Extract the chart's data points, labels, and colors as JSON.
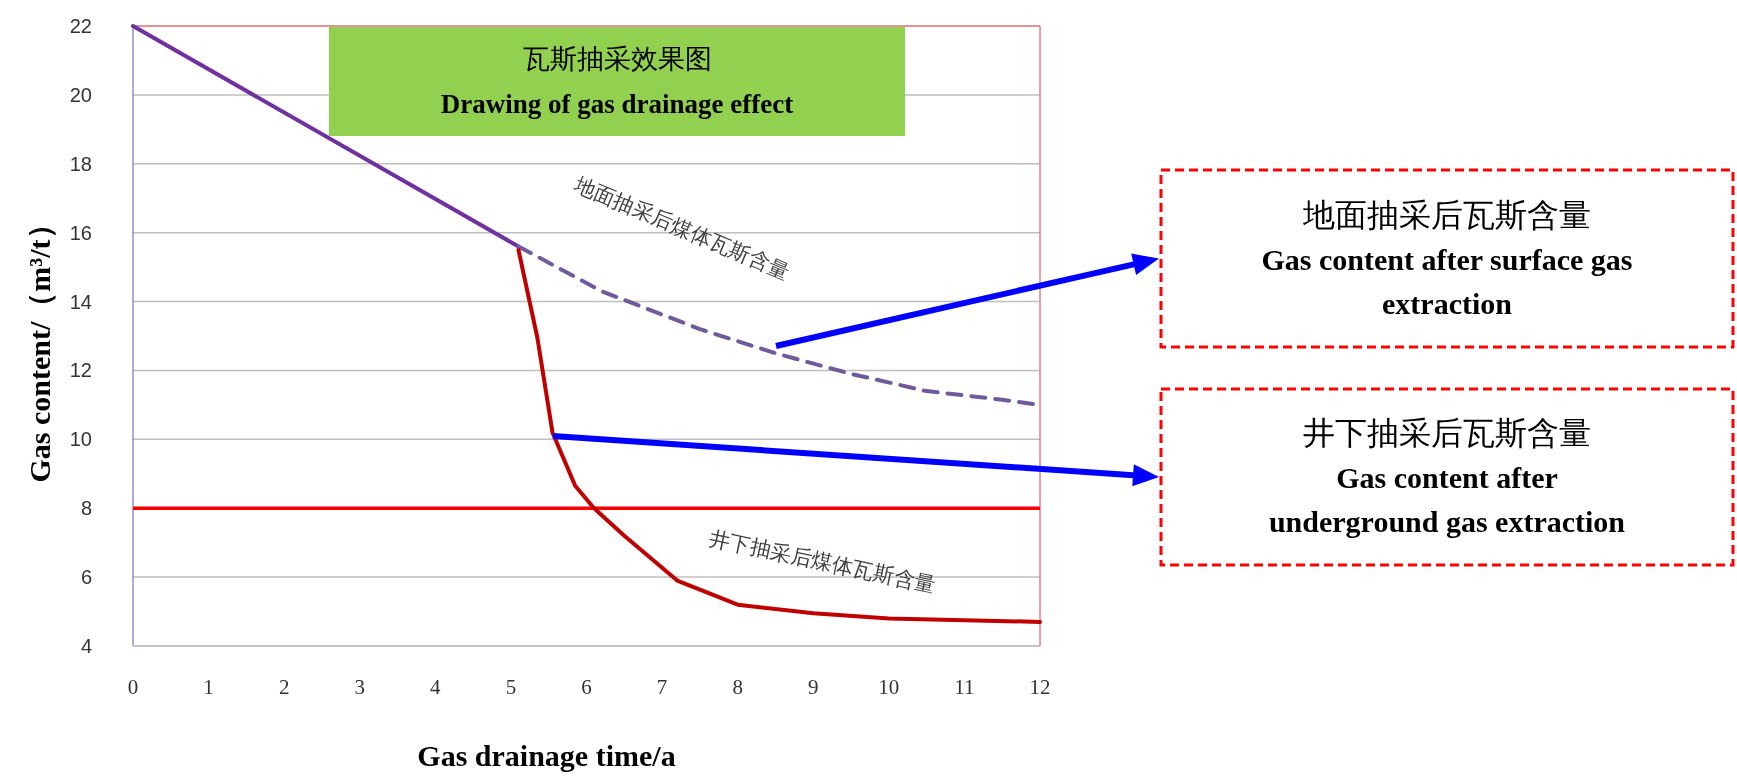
{
  "chart_data": {
    "type": "line",
    "title": "瓦斯抽采效果图",
    "subtitle": "Drawing of gas drainage effect",
    "xlabel": "Gas drainage time/a",
    "ylabel": "Gas content/（m³/t）",
    "xlim": [
      0,
      12
    ],
    "xticks": [
      0,
      1,
      2,
      3,
      4,
      5,
      6,
      7,
      8,
      9,
      10,
      11,
      12
    ],
    "ylim": [
      4,
      22
    ],
    "yticks": [
      4,
      6,
      8,
      10,
      12,
      14,
      16,
      18,
      20,
      22
    ],
    "grid": "y",
    "legend": false,
    "marker": "none",
    "series": [
      {
        "color": "#7030a0",
        "line_style": "solid",
        "x": [
          0,
          5.1
        ],
        "values": [
          22,
          15.6
        ]
      },
      {
        "name": "地面抽采后煤体瓦斯含量",
        "color": "#6f5a9e",
        "line_style": "dashed",
        "x": [
          5.1,
          6.2,
          7.5,
          8.5,
          9.5,
          10.5,
          11.5,
          12
        ],
        "values": [
          15.6,
          14.3,
          13.2,
          12.5,
          11.9,
          11.4,
          11.15,
          11.0
        ]
      },
      {
        "name": "井下抽采后煤体瓦斯含量",
        "color": "#c00000",
        "line_style": "solid",
        "x": [
          5.1,
          5.35,
          5.55,
          5.85,
          6.1,
          6.5,
          7.2,
          8.0,
          9.0,
          10.0,
          11.0,
          12.0
        ],
        "values": [
          15.5,
          12.95,
          10.2,
          8.65,
          8.0,
          7.2,
          5.9,
          5.2,
          4.95,
          4.8,
          4.75,
          4.7
        ]
      }
    ],
    "ref_lines": [
      {
        "axis": "y",
        "value": 8,
        "color": "#ff0000",
        "line_style": "solid"
      }
    ],
    "annotations": [
      "地面抽采后瓦斯含量\nGas content after surface gas\nextraction",
      "井下抽采后瓦斯含量\nGas content after\nunderground gas extraction"
    ]
  }
}
